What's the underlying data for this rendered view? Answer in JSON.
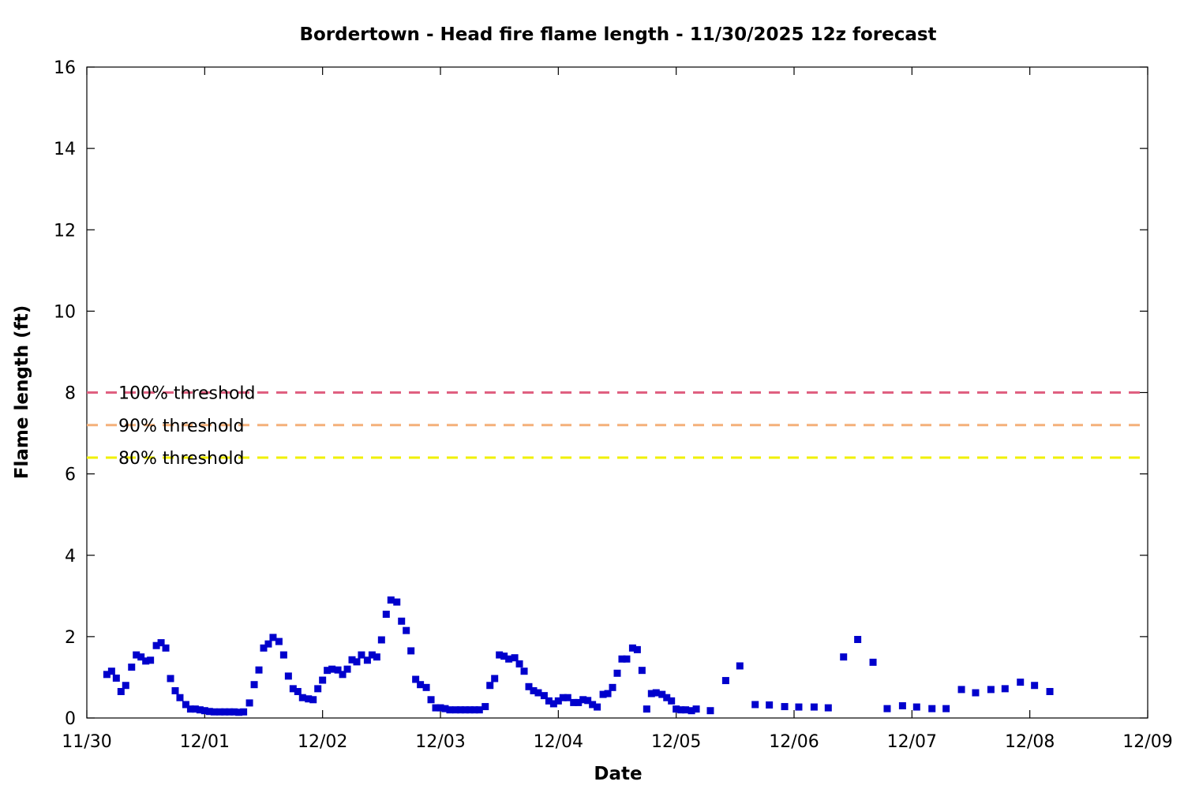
{
  "chart_data": {
    "type": "scatter",
    "title": "Bordertown - Head fire flame length - 11/30/2025 12z forecast",
    "xlabel": "Date",
    "ylabel": "Flame length (ft)",
    "xlim": [
      "11/30",
      "12/09"
    ],
    "ylim": [
      0,
      16
    ],
    "x_ticks": [
      "11/30",
      "12/01",
      "12/02",
      "12/03",
      "12/04",
      "12/05",
      "12/06",
      "12/07",
      "12/08",
      "12/09"
    ],
    "y_ticks": [
      0,
      2,
      4,
      6,
      8,
      10,
      12,
      14,
      16
    ],
    "grid": false,
    "thresholds": [
      {
        "label": "100% threshold",
        "value": 8.0,
        "color": "#e06080"
      },
      {
        "label": "90% threshold",
        "value": 7.2,
        "color": "#f4b07a"
      },
      {
        "label": "80% threshold",
        "value": 6.4,
        "color": "#f0f000"
      }
    ],
    "series": [
      {
        "marker_color": "#0000cc",
        "x_unit": "days after 11/30 00z",
        "points": [
          [
            0.17,
            1.07
          ],
          [
            0.21,
            1.15
          ],
          [
            0.25,
            0.98
          ],
          [
            0.29,
            0.65
          ],
          [
            0.33,
            0.8
          ],
          [
            0.38,
            1.25
          ],
          [
            0.42,
            1.55
          ],
          [
            0.46,
            1.5
          ],
          [
            0.5,
            1.4
          ],
          [
            0.54,
            1.42
          ],
          [
            0.59,
            1.78
          ],
          [
            0.63,
            1.85
          ],
          [
            0.67,
            1.72
          ],
          [
            0.71,
            0.97
          ],
          [
            0.75,
            0.67
          ],
          [
            0.79,
            0.5
          ],
          [
            0.84,
            0.33
          ],
          [
            0.88,
            0.22
          ],
          [
            0.92,
            0.22
          ],
          [
            0.96,
            0.2
          ],
          [
            1.0,
            0.18
          ],
          [
            1.04,
            0.16
          ],
          [
            1.08,
            0.15
          ],
          [
            1.13,
            0.15
          ],
          [
            1.17,
            0.15
          ],
          [
            1.21,
            0.15
          ],
          [
            1.25,
            0.15
          ],
          [
            1.29,
            0.14
          ],
          [
            1.33,
            0.15
          ],
          [
            1.38,
            0.37
          ],
          [
            1.42,
            0.82
          ],
          [
            1.46,
            1.18
          ],
          [
            1.5,
            1.72
          ],
          [
            1.54,
            1.82
          ],
          [
            1.58,
            1.98
          ],
          [
            1.63,
            1.88
          ],
          [
            1.67,
            1.55
          ],
          [
            1.71,
            1.03
          ],
          [
            1.75,
            0.72
          ],
          [
            1.79,
            0.65
          ],
          [
            1.83,
            0.5
          ],
          [
            1.88,
            0.47
          ],
          [
            1.92,
            0.45
          ],
          [
            1.96,
            0.72
          ],
          [
            2.0,
            0.93
          ],
          [
            2.04,
            1.17
          ],
          [
            2.08,
            1.2
          ],
          [
            2.13,
            1.18
          ],
          [
            2.17,
            1.07
          ],
          [
            2.21,
            1.2
          ],
          [
            2.25,
            1.43
          ],
          [
            2.29,
            1.38
          ],
          [
            2.33,
            1.55
          ],
          [
            2.38,
            1.42
          ],
          [
            2.42,
            1.55
          ],
          [
            2.46,
            1.5
          ],
          [
            2.5,
            1.92
          ],
          [
            2.54,
            2.55
          ],
          [
            2.58,
            2.9
          ],
          [
            2.63,
            2.85
          ],
          [
            2.67,
            2.38
          ],
          [
            2.71,
            2.15
          ],
          [
            2.75,
            1.65
          ],
          [
            2.79,
            0.95
          ],
          [
            2.83,
            0.82
          ],
          [
            2.88,
            0.75
          ],
          [
            2.92,
            0.45
          ],
          [
            2.96,
            0.25
          ],
          [
            3.0,
            0.25
          ],
          [
            3.04,
            0.23
          ],
          [
            3.08,
            0.2
          ],
          [
            3.13,
            0.2
          ],
          [
            3.17,
            0.2
          ],
          [
            3.21,
            0.2
          ],
          [
            3.25,
            0.2
          ],
          [
            3.29,
            0.2
          ],
          [
            3.33,
            0.2
          ],
          [
            3.38,
            0.28
          ],
          [
            3.42,
            0.8
          ],
          [
            3.46,
            0.97
          ],
          [
            3.5,
            1.55
          ],
          [
            3.54,
            1.52
          ],
          [
            3.58,
            1.45
          ],
          [
            3.63,
            1.48
          ],
          [
            3.67,
            1.33
          ],
          [
            3.71,
            1.15
          ],
          [
            3.75,
            0.77
          ],
          [
            3.79,
            0.67
          ],
          [
            3.83,
            0.62
          ],
          [
            3.88,
            0.55
          ],
          [
            3.92,
            0.42
          ],
          [
            3.96,
            0.35
          ],
          [
            4.0,
            0.42
          ],
          [
            4.04,
            0.5
          ],
          [
            4.08,
            0.5
          ],
          [
            4.13,
            0.38
          ],
          [
            4.17,
            0.38
          ],
          [
            4.21,
            0.45
          ],
          [
            4.25,
            0.43
          ],
          [
            4.29,
            0.33
          ],
          [
            4.33,
            0.27
          ],
          [
            4.38,
            0.58
          ],
          [
            4.42,
            0.6
          ],
          [
            4.46,
            0.75
          ],
          [
            4.5,
            1.1
          ],
          [
            4.54,
            1.45
          ],
          [
            4.58,
            1.45
          ],
          [
            4.63,
            1.72
          ],
          [
            4.67,
            1.68
          ],
          [
            4.71,
            1.17
          ],
          [
            4.75,
            0.22
          ],
          [
            4.79,
            0.6
          ],
          [
            4.83,
            0.62
          ],
          [
            4.88,
            0.58
          ],
          [
            4.92,
            0.5
          ],
          [
            4.96,
            0.42
          ],
          [
            5.0,
            0.22
          ],
          [
            5.04,
            0.2
          ],
          [
            5.08,
            0.2
          ],
          [
            5.13,
            0.18
          ],
          [
            5.17,
            0.22
          ],
          [
            5.29,
            0.18
          ],
          [
            5.42,
            0.92
          ],
          [
            5.54,
            1.28
          ],
          [
            5.67,
            0.33
          ],
          [
            5.79,
            0.32
          ],
          [
            5.92,
            0.28
          ],
          [
            6.04,
            0.27
          ],
          [
            6.17,
            0.27
          ],
          [
            6.29,
            0.25
          ],
          [
            6.42,
            1.5
          ],
          [
            6.54,
            1.93
          ],
          [
            6.67,
            1.37
          ],
          [
            6.79,
            0.23
          ],
          [
            6.92,
            0.3
          ],
          [
            7.04,
            0.27
          ],
          [
            7.17,
            0.23
          ],
          [
            7.29,
            0.23
          ],
          [
            7.42,
            0.7
          ],
          [
            7.54,
            0.62
          ],
          [
            7.67,
            0.7
          ],
          [
            7.79,
            0.72
          ],
          [
            7.92,
            0.88
          ],
          [
            8.04,
            0.8
          ],
          [
            8.17,
            0.65
          ]
        ]
      }
    ]
  }
}
